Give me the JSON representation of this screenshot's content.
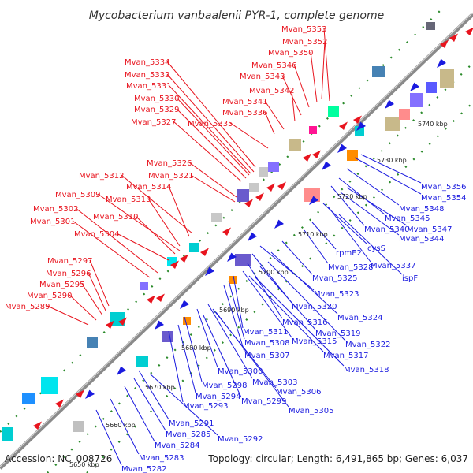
{
  "title": "Mycobacterium vanbaalenii PYR-1, complete genome",
  "accession": "Accession: NC_008726",
  "topology": "Topology: circular; Length: 6,491,865 bp; Genes: 6,037",
  "colors": {
    "forward_strand": "#e8141e",
    "reverse_strand": "#1a1adf",
    "backbone": "#8a8a8a",
    "ruler_dots": "#2a8a2a"
  },
  "scale_ticks": [
    {
      "label": "5650 kbp",
      "pos": 5650
    },
    {
      "label": "5660 kbp",
      "pos": 5660
    },
    {
      "label": "5670 kbp",
      "pos": 5670
    },
    {
      "label": "5680 kbp",
      "pos": 5680
    },
    {
      "label": "5690 kbp",
      "pos": 5690
    },
    {
      "label": "5700 kbp",
      "pos": 5700
    },
    {
      "label": "5710 kbp",
      "pos": 5710
    },
    {
      "label": "5720 kbp",
      "pos": 5720
    },
    {
      "label": "5730 kbp",
      "pos": 5730
    },
    {
      "label": "5740 kbp",
      "pos": 5740
    }
  ],
  "forward_labels": [
    "Mvan_5353",
    "Mvan_5352",
    "Mvan_5350",
    "Mvan_5346",
    "Mvan_5343",
    "Mvan_5342",
    "Mvan_5341",
    "Mvan_5334",
    "Mvan_5332",
    "Mvan_5331",
    "Mvan_5330",
    "Mvan_5329",
    "Mvan_5336",
    "Mvan_5327",
    "Mvan_5335",
    "Mvan_5326",
    "Mvan_5321",
    "Mvan_5312",
    "Mvan_5314",
    "Mvan_5309",
    "Mvan_5313",
    "Mvan_5302",
    "Mvan_5310",
    "Mvan_5301",
    "Mvan_5304",
    "Mvan_5297",
    "Mvan_5296",
    "Mvan_5295",
    "Mvan_5290",
    "Mvan_5289"
  ],
  "reverse_labels": [
    "Mvan_5356",
    "Mvan_5354",
    "Mvan_5348",
    "Mvan_5345",
    "Mvan_5340",
    "Mvan_5347",
    "Mvan_5344",
    "cysS",
    "Mvan_5337",
    "ispF",
    "rpmE2",
    "Mvan_5328",
    "Mvan_5325",
    "Mvan_5323",
    "Mvan_5320",
    "Mvan_5324",
    "Mvan_5316",
    "Mvan_5319",
    "Mvan_5311",
    "Mvan_5315",
    "Mvan_5322",
    "Mvan_5308",
    "Mvan_5307",
    "Mvan_5317",
    "Mvan_5318",
    "Mvan_5300",
    "Mvan_5303",
    "Mvan_5298",
    "Mvan_5306",
    "Mvan_5294",
    "Mvan_5299",
    "Mvan_5293",
    "Mvan_5305",
    "Mvan_5291",
    "Mvan_5285",
    "Mvan_5292",
    "Mvan_5284",
    "Mvan_5283",
    "Mvan_5282"
  ]
}
